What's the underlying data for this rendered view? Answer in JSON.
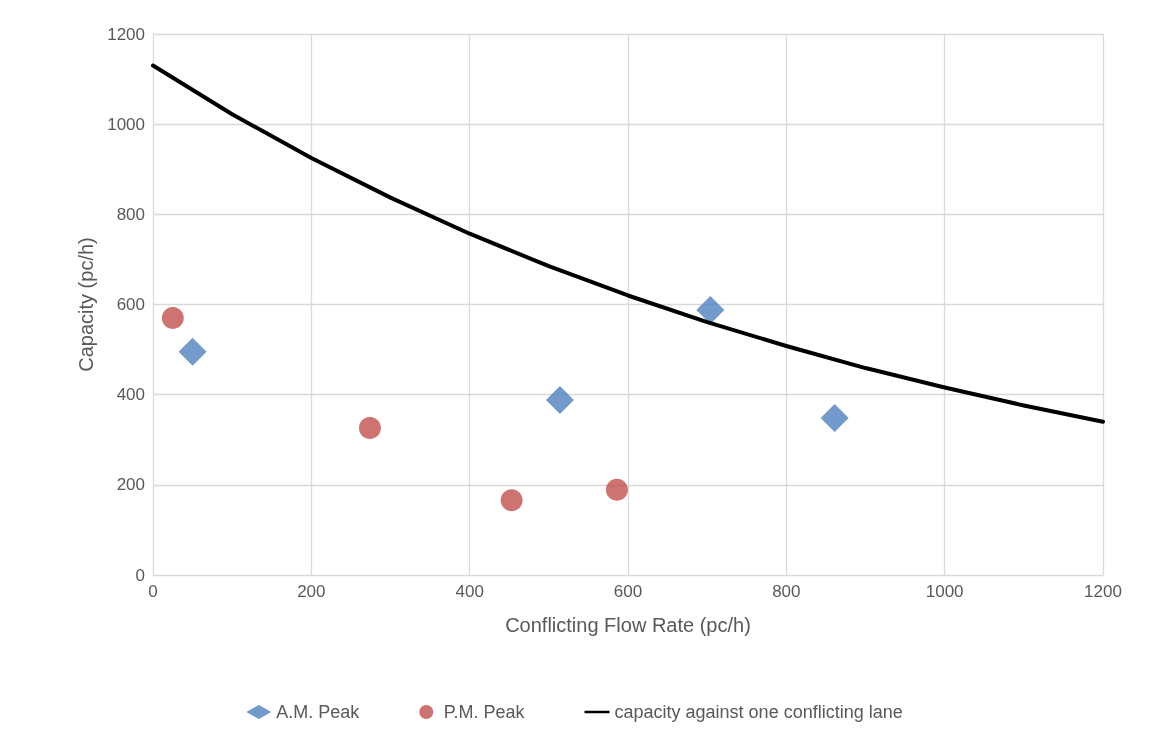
{
  "chart_data": {
    "type": "scatter",
    "xlabel": "Conflicting Flow Rate (pc/h)",
    "ylabel": "Capacity (pc/h)",
    "xlim": [
      0,
      1200
    ],
    "xticks": [
      0,
      200,
      400,
      600,
      800,
      1000,
      1200
    ],
    "ylim": [
      0,
      1200
    ],
    "yticks": [
      0,
      200,
      400,
      600,
      800,
      1000,
      1200
    ],
    "grid": true,
    "legend": "bottom",
    "series": [
      {
        "name": "A.M. Peak",
        "marker": "diamond",
        "color": "#4f81bd",
        "x": [
          50,
          514,
          704,
          861
        ],
        "values": [
          495,
          388,
          588,
          348
        ]
      },
      {
        "name": "P.M. Peak",
        "marker": "circle",
        "color": "#c0504d",
        "x": [
          25,
          274,
          453,
          586
        ],
        "values": [
          570,
          326,
          166,
          189
        ]
      },
      {
        "name": "capacity against one conflicting lane",
        "type": "line",
        "marker": "none",
        "line_style": "solid",
        "color": "#000000",
        "x": [
          0,
          100,
          200,
          300,
          400,
          500,
          600,
          700,
          800,
          900,
          1000,
          1100,
          1200
        ],
        "values": [
          1130,
          1022,
          925,
          837,
          757,
          685,
          620,
          561,
          508,
          459,
          416,
          376,
          340
        ]
      }
    ]
  }
}
